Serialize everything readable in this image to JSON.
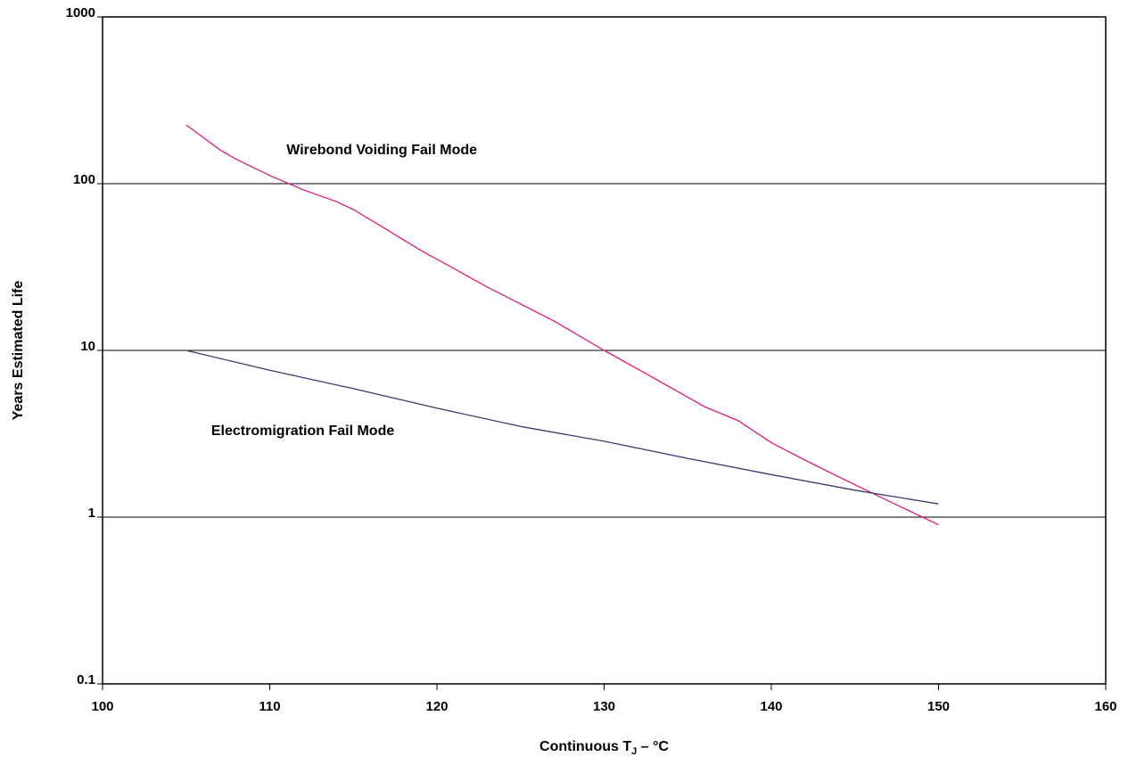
{
  "chart_data": {
    "type": "line",
    "xlabel": "Continuous T",
    "xlabel_sub": "J",
    "xlabel_unit": " – °C",
    "ylabel": "Years Estimated Life",
    "xlim": [
      100,
      160
    ],
    "ylim": [
      0.1,
      1000
    ],
    "yscale": "log",
    "x_ticks": [
      "100",
      "110",
      "120",
      "130",
      "140",
      "150",
      "160"
    ],
    "y_ticks": [
      "0.1",
      "1",
      "10",
      "100",
      "1000"
    ],
    "grid": "horizontal",
    "annotations": [
      {
        "text": "Wirebond Voiding Fail Mode",
        "x": 111,
        "y": 150
      },
      {
        "text": "Electromigration Fail Mode",
        "x": 106.5,
        "y": 3.1
      }
    ],
    "series": [
      {
        "color": "#e0197d",
        "x": [
          105,
          106,
          107,
          108,
          110,
          112,
          114,
          115,
          117,
          119,
          121,
          123,
          125,
          127,
          130,
          133,
          136,
          138,
          140,
          142,
          144,
          146,
          148,
          150
        ],
        "y": [
          225,
          190,
          160,
          140,
          112,
          92,
          78,
          70,
          53,
          40,
          31,
          24,
          19,
          15,
          10,
          6.8,
          4.6,
          3.8,
          2.8,
          2.2,
          1.75,
          1.4,
          1.12,
          0.9
        ]
      },
      {
        "color": "#3a3a6e",
        "x": [
          105,
          110,
          115,
          120,
          125,
          130,
          135,
          140,
          145,
          150
        ],
        "y": [
          10,
          7.6,
          5.9,
          4.5,
          3.5,
          2.85,
          2.25,
          1.8,
          1.45,
          1.2
        ]
      }
    ]
  }
}
